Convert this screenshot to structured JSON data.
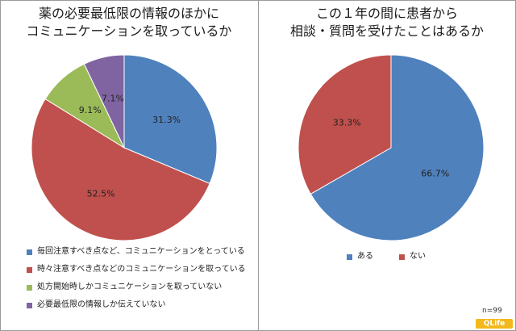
{
  "charts": [
    {
      "type": "pie",
      "title": [
        "薬の必要最低限の情報のほかに",
        "コミュニケーションを取っているか"
      ],
      "series": [
        {
          "name": "毎回注意すべき点など、コミュニケーションをとっている",
          "value": 31.3,
          "label": "31.3%",
          "color": "#4f81bd"
        },
        {
          "name": "時々注意すべき点などのコミュニケーションを取っている",
          "value": 52.5,
          "label": "52.5%",
          "color": "#c0504d"
        },
        {
          "name": "処方開始時しかコミュニケーションを取っていない",
          "value": 9.1,
          "label": "9.1%",
          "color": "#9bbb59"
        },
        {
          "name": "必要最低限の情報しか伝えていない",
          "value": 7.1,
          "label": "7.1%",
          "color": "#8064a2"
        }
      ]
    },
    {
      "type": "pie",
      "title": [
        "この１年の間に患者から",
        "相談・質問を受けたことはあるか"
      ],
      "series": [
        {
          "name": "ある",
          "value": 66.7,
          "label": "66.7%",
          "color": "#4f81bd"
        },
        {
          "name": "ない",
          "value": 33.3,
          "label": "33.3%",
          "color": "#c0504d"
        }
      ]
    }
  ],
  "note": "n=99",
  "brand": "QLife"
}
